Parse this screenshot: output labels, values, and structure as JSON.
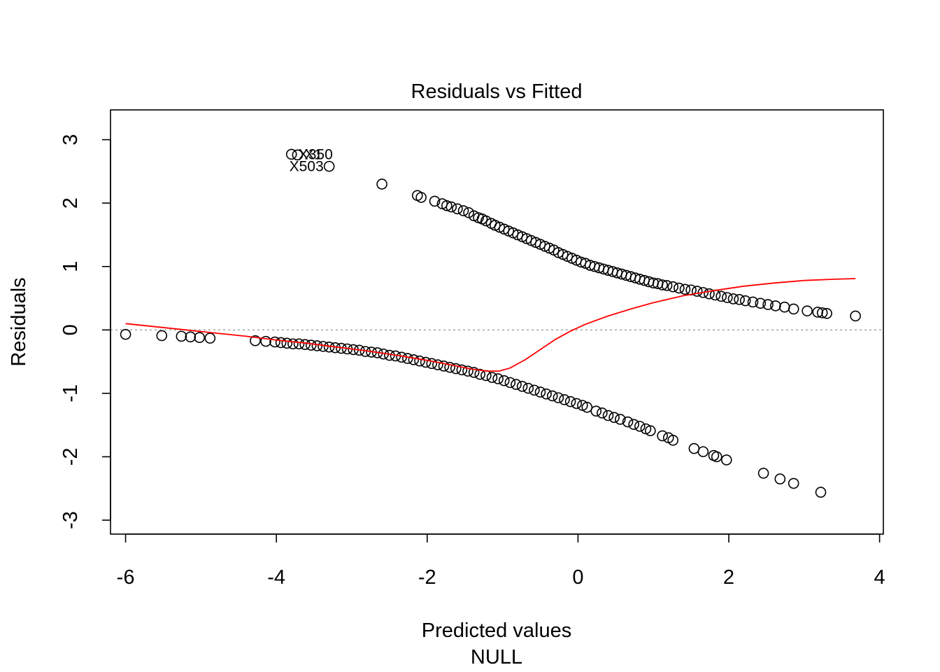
{
  "chart_data": {
    "type": "scatter",
    "title": "Residuals vs Fitted",
    "xlabel": "Predicted values",
    "sublabel": "NULL",
    "ylabel": "Residuals",
    "xlim": [
      -6.2,
      4.05
    ],
    "ylim": [
      -3.22,
      3.47
    ],
    "x_ticks": [
      -6,
      -4,
      -2,
      0,
      2,
      4
    ],
    "y_ticks": [
      -3,
      -2,
      -1,
      0,
      1,
      2,
      3
    ],
    "grid": false,
    "reference_line": {
      "y": 0,
      "color": "#aaaaaa",
      "style": "dotted"
    },
    "point_color": "#000000",
    "smooth_color": "#ff0000",
    "annotations": [
      {
        "text": "X350",
        "x": -3.8,
        "y": 2.77
      },
      {
        "text": "X1",
        "x": -3.72,
        "y": 2.77
      },
      {
        "text": "X503",
        "x": -3.3,
        "y": 2.58
      }
    ],
    "series": [
      {
        "points": [
          [
            -3.8,
            2.77
          ],
          [
            -3.72,
            2.76
          ],
          [
            -3.3,
            2.58
          ],
          [
            -2.6,
            2.3
          ],
          [
            -2.13,
            2.12
          ],
          [
            -2.08,
            2.09
          ],
          [
            -1.9,
            2.03
          ],
          [
            -1.8,
            1.99
          ],
          [
            -1.74,
            1.96
          ],
          [
            -1.68,
            1.94
          ],
          [
            -1.6,
            1.91
          ],
          [
            -1.52,
            1.88
          ],
          [
            -1.45,
            1.85
          ],
          [
            -1.38,
            1.8
          ],
          [
            -1.32,
            1.77
          ],
          [
            -1.27,
            1.75
          ],
          [
            -1.22,
            1.72
          ],
          [
            -1.15,
            1.68
          ],
          [
            -1.1,
            1.65
          ],
          [
            -1.04,
            1.62
          ],
          [
            -0.98,
            1.59
          ],
          [
            -0.92,
            1.56
          ],
          [
            -0.86,
            1.53
          ],
          [
            -0.8,
            1.5
          ],
          [
            -0.74,
            1.47
          ],
          [
            -0.68,
            1.44
          ],
          [
            -0.62,
            1.41
          ],
          [
            -0.56,
            1.38
          ],
          [
            -0.5,
            1.35
          ],
          [
            -0.44,
            1.32
          ],
          [
            -0.38,
            1.29
          ],
          [
            -0.32,
            1.26
          ],
          [
            -0.26,
            1.22
          ],
          [
            -0.2,
            1.19
          ],
          [
            -0.14,
            1.16
          ],
          [
            -0.08,
            1.13
          ],
          [
            -0.02,
            1.1
          ],
          [
            0.04,
            1.07
          ],
          [
            0.1,
            1.05
          ],
          [
            0.16,
            1.02
          ],
          [
            0.22,
            1.0
          ],
          [
            0.28,
            0.98
          ],
          [
            0.34,
            0.96
          ],
          [
            0.4,
            0.94
          ],
          [
            0.46,
            0.92
          ],
          [
            0.52,
            0.9
          ],
          [
            0.58,
            0.88
          ],
          [
            0.64,
            0.86
          ],
          [
            0.7,
            0.84
          ],
          [
            0.76,
            0.82
          ],
          [
            0.82,
            0.8
          ],
          [
            0.88,
            0.78
          ],
          [
            0.94,
            0.76
          ],
          [
            1.0,
            0.74
          ],
          [
            1.06,
            0.73
          ],
          [
            1.12,
            0.71
          ],
          [
            1.18,
            0.7
          ],
          [
            1.26,
            0.68
          ],
          [
            1.34,
            0.66
          ],
          [
            1.42,
            0.64
          ],
          [
            1.5,
            0.63
          ],
          [
            1.58,
            0.61
          ],
          [
            1.66,
            0.59
          ],
          [
            1.74,
            0.57
          ],
          [
            1.82,
            0.55
          ],
          [
            1.9,
            0.53
          ],
          [
            1.98,
            0.51
          ],
          [
            2.06,
            0.49
          ],
          [
            2.14,
            0.48
          ],
          [
            2.22,
            0.46
          ],
          [
            2.32,
            0.44
          ],
          [
            2.42,
            0.42
          ],
          [
            2.52,
            0.4
          ],
          [
            2.62,
            0.38
          ],
          [
            2.74,
            0.36
          ],
          [
            2.86,
            0.33
          ],
          [
            3.04,
            0.3
          ],
          [
            3.18,
            0.28
          ],
          [
            3.24,
            0.27
          ],
          [
            3.3,
            0.26
          ],
          [
            3.68,
            0.22
          ],
          [
            -6.0,
            -0.07
          ],
          [
            -5.52,
            -0.09
          ],
          [
            -5.26,
            -0.1
          ],
          [
            -5.14,
            -0.11
          ],
          [
            -5.02,
            -0.12
          ],
          [
            -4.88,
            -0.13
          ],
          [
            -4.28,
            -0.17
          ],
          [
            -4.14,
            -0.18
          ],
          [
            -4.02,
            -0.19
          ],
          [
            -3.94,
            -0.2
          ],
          [
            -3.86,
            -0.21
          ],
          [
            -3.78,
            -0.22
          ],
          [
            -3.7,
            -0.22
          ],
          [
            -3.62,
            -0.23
          ],
          [
            -3.54,
            -0.24
          ],
          [
            -3.46,
            -0.25
          ],
          [
            -3.38,
            -0.26
          ],
          [
            -3.3,
            -0.27
          ],
          [
            -3.22,
            -0.28
          ],
          [
            -3.14,
            -0.29
          ],
          [
            -3.06,
            -0.3
          ],
          [
            -2.98,
            -0.31
          ],
          [
            -2.9,
            -0.32
          ],
          [
            -2.82,
            -0.34
          ],
          [
            -2.74,
            -0.35
          ],
          [
            -2.66,
            -0.36
          ],
          [
            -2.58,
            -0.38
          ],
          [
            -2.5,
            -0.4
          ],
          [
            -2.42,
            -0.41
          ],
          [
            -2.34,
            -0.43
          ],
          [
            -2.26,
            -0.45
          ],
          [
            -2.18,
            -0.47
          ],
          [
            -2.1,
            -0.49
          ],
          [
            -2.02,
            -0.51
          ],
          [
            -1.94,
            -0.53
          ],
          [
            -1.86,
            -0.55
          ],
          [
            -1.78,
            -0.57
          ],
          [
            -1.7,
            -0.59
          ],
          [
            -1.62,
            -0.61
          ],
          [
            -1.54,
            -0.63
          ],
          [
            -1.46,
            -0.65
          ],
          [
            -1.38,
            -0.67
          ],
          [
            -1.3,
            -0.7
          ],
          [
            -1.22,
            -0.72
          ],
          [
            -1.14,
            -0.75
          ],
          [
            -1.06,
            -0.77
          ],
          [
            -0.98,
            -0.8
          ],
          [
            -0.9,
            -0.83
          ],
          [
            -0.82,
            -0.86
          ],
          [
            -0.74,
            -0.89
          ],
          [
            -0.66,
            -0.92
          ],
          [
            -0.58,
            -0.95
          ],
          [
            -0.5,
            -0.98
          ],
          [
            -0.42,
            -1.01
          ],
          [
            -0.34,
            -1.04
          ],
          [
            -0.26,
            -1.07
          ],
          [
            -0.18,
            -1.1
          ],
          [
            -0.1,
            -1.13
          ],
          [
            -0.02,
            -1.16
          ],
          [
            0.06,
            -1.19
          ],
          [
            0.12,
            -1.22
          ],
          [
            0.24,
            -1.28
          ],
          [
            0.32,
            -1.31
          ],
          [
            0.4,
            -1.35
          ],
          [
            0.48,
            -1.38
          ],
          [
            0.56,
            -1.41
          ],
          [
            0.66,
            -1.45
          ],
          [
            0.74,
            -1.49
          ],
          [
            0.82,
            -1.52
          ],
          [
            0.9,
            -1.56
          ],
          [
            0.96,
            -1.59
          ],
          [
            1.12,
            -1.67
          ],
          [
            1.2,
            -1.7
          ],
          [
            1.26,
            -1.74
          ],
          [
            1.54,
            -1.87
          ],
          [
            1.66,
            -1.92
          ],
          [
            1.8,
            -1.98
          ],
          [
            1.84,
            -2.0
          ],
          [
            1.97,
            -2.05
          ],
          [
            2.46,
            -2.26
          ],
          [
            2.68,
            -2.35
          ],
          [
            2.86,
            -2.42
          ],
          [
            3.22,
            -2.56
          ]
        ]
      }
    ],
    "smooth_line": [
      [
        -6.0,
        0.1
      ],
      [
        -5.6,
        0.05
      ],
      [
        -5.2,
        0.0
      ],
      [
        -4.8,
        -0.05
      ],
      [
        -4.4,
        -0.1
      ],
      [
        -4.0,
        -0.16
      ],
      [
        -3.6,
        -0.21
      ],
      [
        -3.2,
        -0.27
      ],
      [
        -2.8,
        -0.33
      ],
      [
        -2.4,
        -0.4
      ],
      [
        -2.0,
        -0.48
      ],
      [
        -1.6,
        -0.57
      ],
      [
        -1.4,
        -0.62
      ],
      [
        -1.2,
        -0.65
      ],
      [
        -1.05,
        -0.65
      ],
      [
        -0.9,
        -0.6
      ],
      [
        -0.7,
        -0.47
      ],
      [
        -0.5,
        -0.31
      ],
      [
        -0.3,
        -0.15
      ],
      [
        -0.1,
        -0.02
      ],
      [
        0.1,
        0.09
      ],
      [
        0.4,
        0.22
      ],
      [
        0.7,
        0.33
      ],
      [
        1.0,
        0.43
      ],
      [
        1.4,
        0.54
      ],
      [
        1.8,
        0.62
      ],
      [
        2.2,
        0.69
      ],
      [
        2.6,
        0.74
      ],
      [
        3.0,
        0.78
      ],
      [
        3.4,
        0.8
      ],
      [
        3.68,
        0.81
      ]
    ]
  }
}
